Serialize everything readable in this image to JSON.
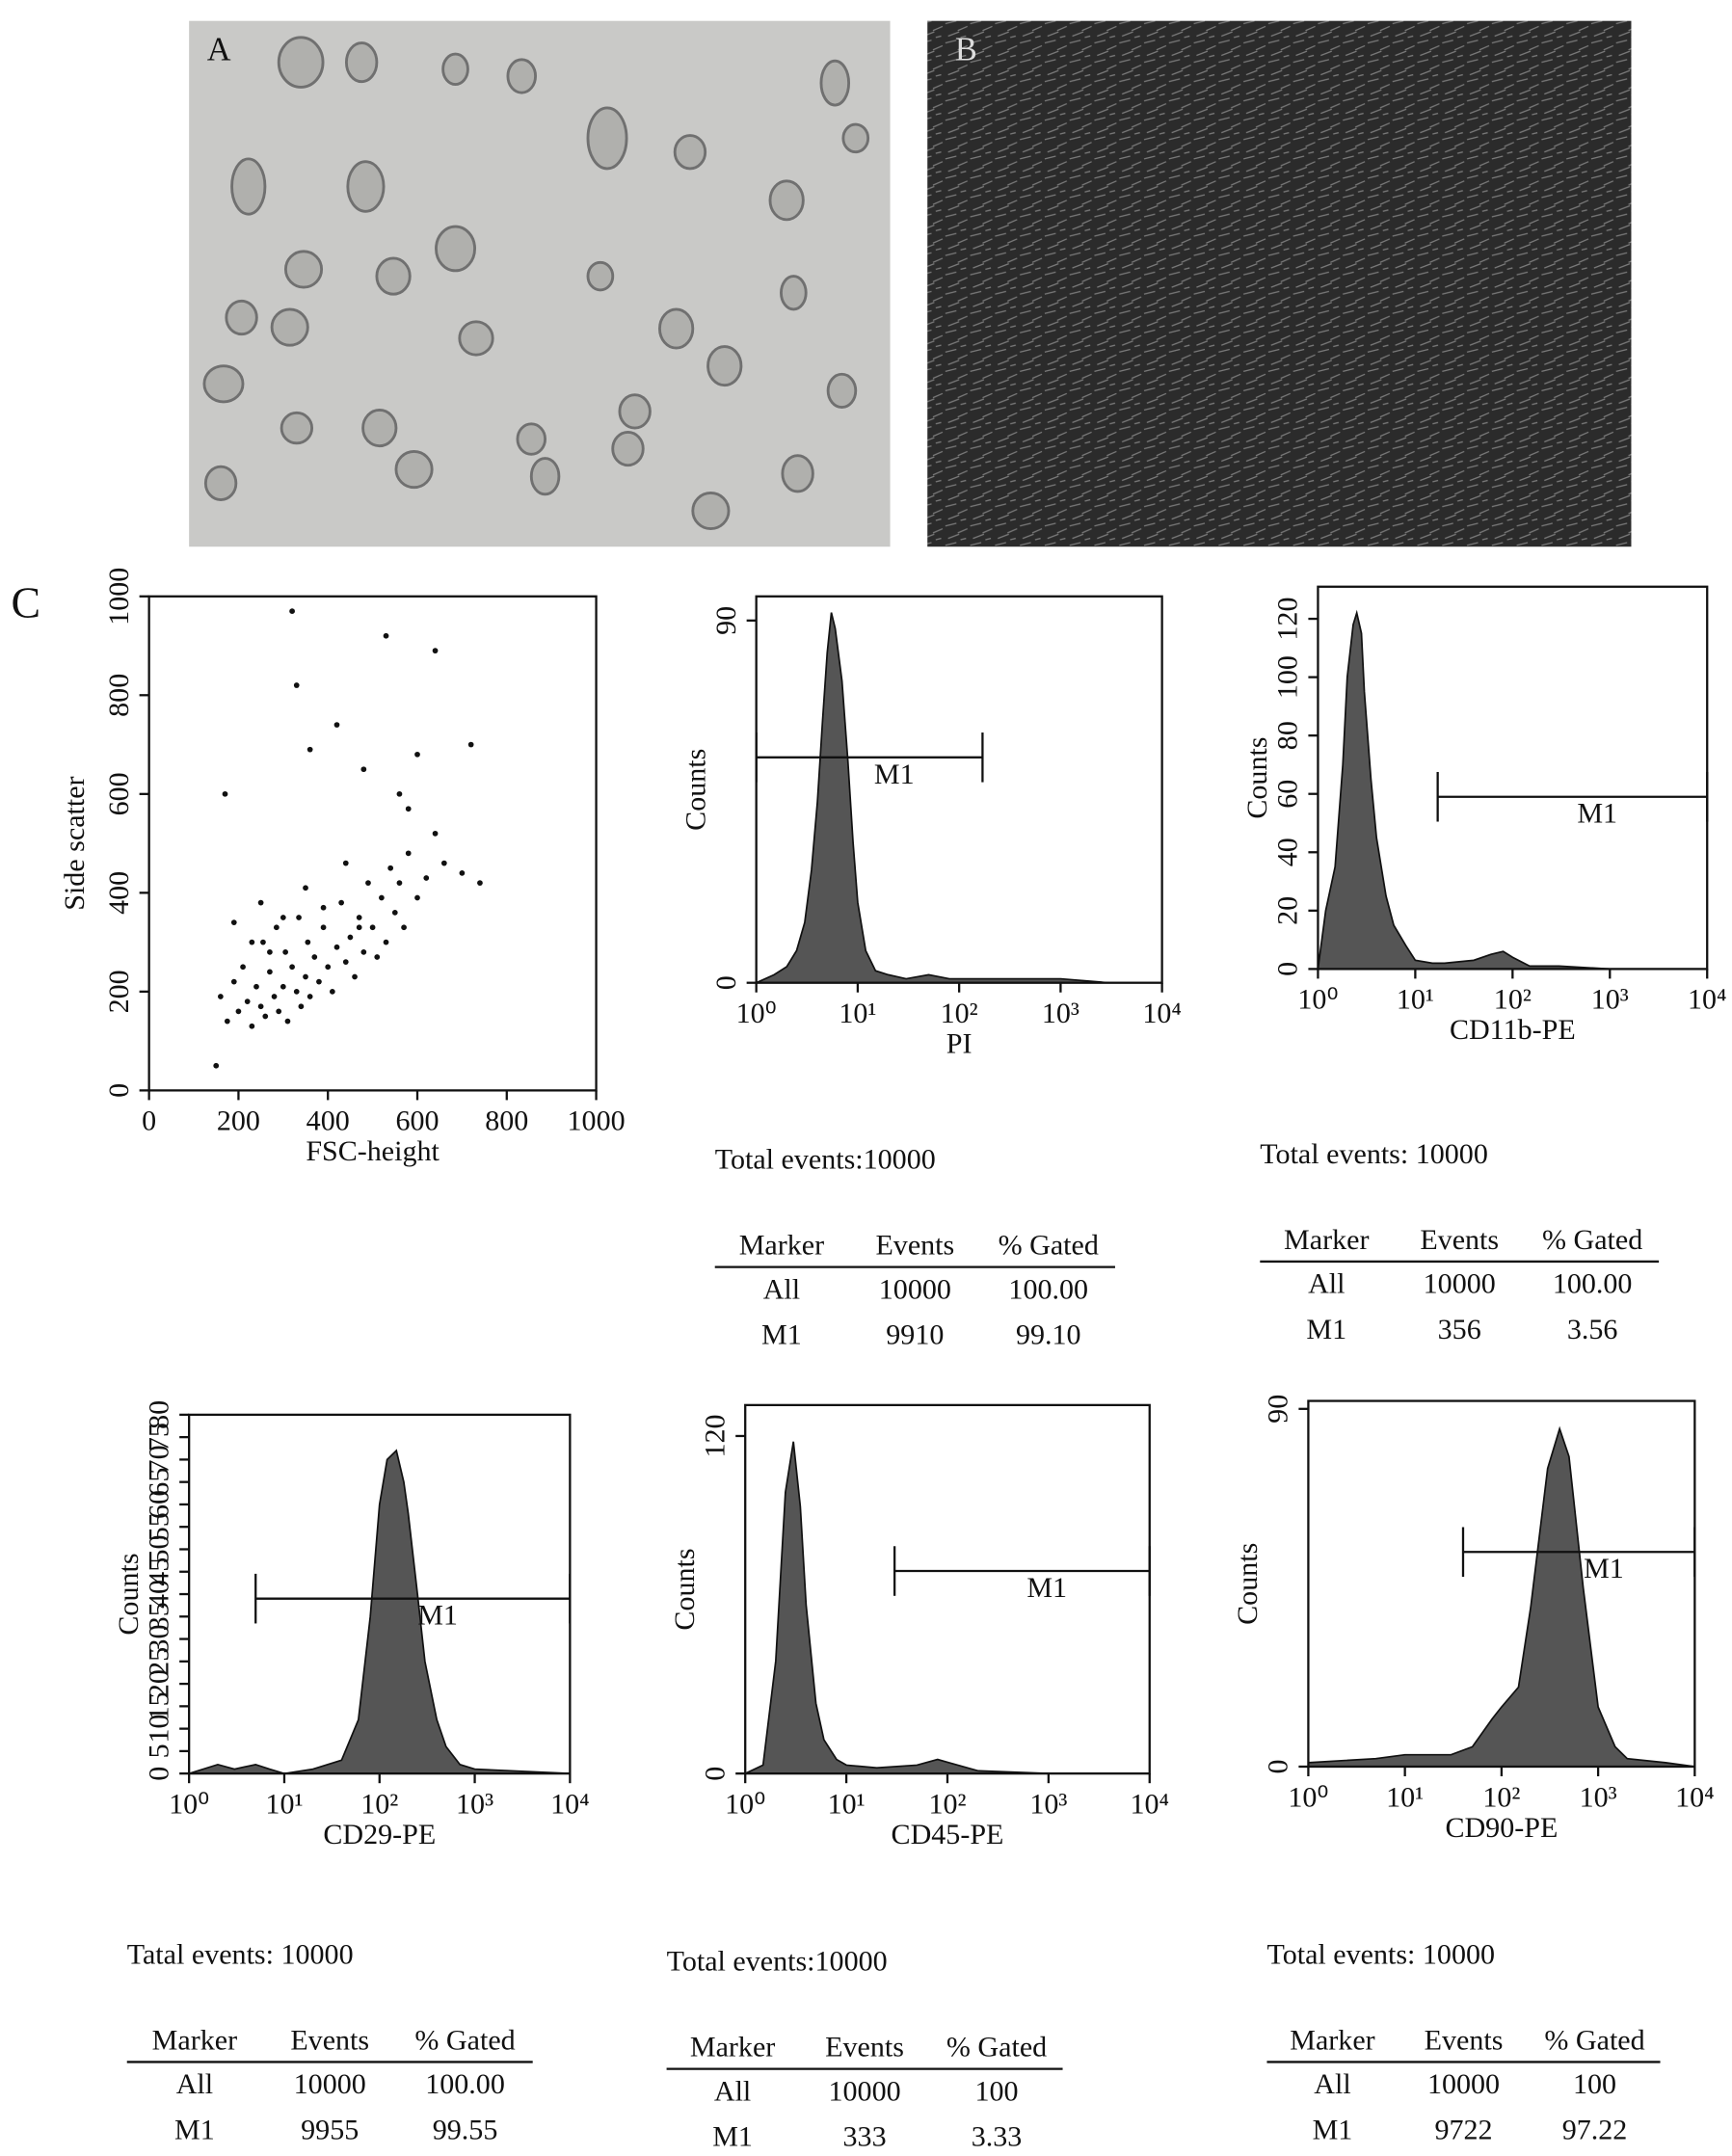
{
  "panels": {
    "a": "A",
    "b": "B",
    "c": "C"
  },
  "chart_data": [
    {
      "type": "scatter",
      "x_label": "FSC-height",
      "y_label": "Side scatter",
      "xlim": [
        0,
        1000
      ],
      "ylim": [
        0,
        1000
      ],
      "xticks": [
        0,
        200,
        400,
        600,
        800,
        1000
      ],
      "yticks": [
        0,
        200,
        400,
        600,
        800,
        1000
      ],
      "color": "#111111",
      "x": [
        150,
        160,
        175,
        190,
        200,
        210,
        220,
        230,
        240,
        250,
        255,
        260,
        270,
        280,
        285,
        290,
        300,
        305,
        310,
        320,
        330,
        335,
        340,
        350,
        355,
        360,
        370,
        380,
        390,
        400,
        410,
        420,
        430,
        440,
        450,
        460,
        470,
        480,
        490,
        500,
        510,
        520,
        530,
        540,
        550,
        560,
        570,
        580,
        600,
        620,
        640,
        660,
        700,
        720,
        740,
        320,
        330,
        360,
        420,
        480,
        530,
        560,
        580,
        600,
        640,
        170,
        190,
        230,
        250,
        270,
        300,
        350,
        390,
        440,
        470
      ],
      "values": [
        50,
        190,
        140,
        220,
        160,
        250,
        180,
        130,
        210,
        170,
        300,
        150,
        240,
        190,
        330,
        160,
        210,
        280,
        140,
        250,
        200,
        350,
        170,
        230,
        300,
        190,
        270,
        220,
        330,
        250,
        200,
        290,
        380,
        260,
        310,
        230,
        350,
        280,
        420,
        330,
        270,
        390,
        300,
        450,
        360,
        420,
        330,
        480,
        390,
        430,
        520,
        460,
        440,
        700,
        420,
        970,
        820,
        690,
        740,
        650,
        920,
        600,
        570,
        680,
        890,
        600,
        340,
        300,
        380,
        280,
        350,
        410,
        370,
        460,
        330
      ]
    },
    {
      "type": "histogram",
      "x_label": "PI",
      "y_label": "Counts",
      "log_x": true,
      "xlim": [
        1,
        10000
      ],
      "ylim": [
        0,
        96
      ],
      "xticks": [
        {
          "value": 1,
          "label": "10⁰"
        },
        {
          "value": 10,
          "label": "10¹"
        },
        {
          "value": 100,
          "label": "10²"
        },
        {
          "value": 1000,
          "label": "10³"
        },
        {
          "value": 10000,
          "label": "10⁴"
        }
      ],
      "yticks": [
        0,
        90
      ],
      "color": "#555555",
      "x": [
        1,
        1.5,
        2,
        2.5,
        3,
        3.5,
        4,
        4.5,
        5,
        5.5,
        6,
        7,
        8,
        9,
        10,
        12,
        15,
        20,
        30,
        50,
        80,
        150,
        300,
        1000,
        3000,
        10000
      ],
      "values": [
        0,
        2,
        4,
        8,
        15,
        28,
        45,
        65,
        82,
        92,
        88,
        75,
        55,
        35,
        20,
        8,
        3,
        2,
        1,
        2,
        1,
        1,
        1,
        1,
        0,
        0
      ],
      "gate": {
        "label": "M1",
        "range": [
          1,
          170
        ],
        "level": 56
      },
      "stats": {
        "total": "Total events:10000",
        "columns": [
          "Marker",
          "Events",
          "% Gated"
        ],
        "rows": [
          [
            "All",
            "10000",
            "100.00"
          ],
          [
            "M1",
            "9910",
            "99.10"
          ]
        ]
      }
    },
    {
      "type": "histogram",
      "x_label": "CD11b-PE",
      "y_label": "Counts",
      "log_x": true,
      "xlim": [
        1,
        10000
      ],
      "ylim": [
        0,
        131
      ],
      "xticks": [
        {
          "value": 1,
          "label": "10⁰"
        },
        {
          "value": 10,
          "label": "10¹"
        },
        {
          "value": 100,
          "label": "10²"
        },
        {
          "value": 1000,
          "label": "10³"
        },
        {
          "value": 10000,
          "label": "10⁴"
        }
      ],
      "yticks": [
        0,
        20,
        40,
        60,
        80,
        100,
        120
      ],
      "color": "#555555",
      "x": [
        1,
        1.2,
        1.5,
        1.8,
        2,
        2.3,
        2.5,
        2.8,
        3,
        3.5,
        4,
        5,
        6,
        8,
        10,
        15,
        20,
        40,
        60,
        80,
        100,
        150,
        300,
        1000,
        10000
      ],
      "values": [
        0,
        20,
        35,
        70,
        100,
        118,
        122,
        115,
        95,
        65,
        45,
        25,
        15,
        8,
        3,
        2,
        2,
        3,
        5,
        6,
        4,
        1,
        1,
        0,
        0
      ],
      "gate": {
        "label": "M1",
        "range": [
          17,
          10000
        ],
        "level": 59
      },
      "stats": {
        "total": "Total events: 10000",
        "columns": [
          "Marker",
          "Events",
          "% Gated"
        ],
        "rows": [
          [
            "All",
            "10000",
            "100.00"
          ],
          [
            "M1",
            "356",
            "3.56"
          ]
        ]
      }
    },
    {
      "type": "histogram",
      "x_label": "CD29-PE",
      "y_label": "Counts",
      "log_x": true,
      "xlim": [
        1,
        10000
      ],
      "ylim": [
        0,
        80
      ],
      "xticks": [
        {
          "value": 1,
          "label": "10⁰"
        },
        {
          "value": 10,
          "label": "10¹"
        },
        {
          "value": 100,
          "label": "10²"
        },
        {
          "value": 1000,
          "label": "10³"
        },
        {
          "value": 10000,
          "label": "10⁴"
        }
      ],
      "yticks": [
        0,
        5,
        10,
        15,
        20,
        25,
        30,
        35,
        40,
        45,
        50,
        55,
        60,
        65,
        70,
        75,
        80
      ],
      "color": "#555555",
      "x": [
        1,
        2,
        3,
        5,
        7,
        10,
        20,
        40,
        60,
        80,
        100,
        120,
        150,
        180,
        200,
        250,
        300,
        400,
        500,
        700,
        1000,
        10000
      ],
      "values": [
        0,
        2,
        1,
        2,
        1,
        0,
        1,
        3,
        12,
        35,
        60,
        70,
        72,
        65,
        58,
        40,
        25,
        12,
        6,
        2,
        1,
        0
      ],
      "gate": {
        "label": "M1",
        "range": [
          5,
          10000
        ],
        "level": 39
      },
      "stats": {
        "total": "Tatal events: 10000",
        "columns": [
          "Marker",
          "Events",
          "% Gated"
        ],
        "rows": [
          [
            "All",
            "10000",
            "100.00"
          ],
          [
            "M1",
            "9955",
            "99.55"
          ]
        ]
      }
    },
    {
      "type": "histogram",
      "x_label": "CD45-PE",
      "y_label": "Counts",
      "log_x": true,
      "xlim": [
        1,
        10000
      ],
      "ylim": [
        0,
        131
      ],
      "xticks": [
        {
          "value": 1,
          "label": "10⁰"
        },
        {
          "value": 10,
          "label": "10¹"
        },
        {
          "value": 100,
          "label": "10²"
        },
        {
          "value": 1000,
          "label": "10³"
        },
        {
          "value": 10000,
          "label": "10⁴"
        }
      ],
      "yticks": [
        0,
        120
      ],
      "color": "#555555",
      "x": [
        1,
        1.5,
        2,
        2.5,
        3,
        3.5,
        4,
        5,
        6,
        8,
        10,
        20,
        50,
        80,
        100,
        200,
        1000,
        10000
      ],
      "values": [
        0,
        3,
        40,
        100,
        118,
        95,
        60,
        25,
        12,
        5,
        3,
        2,
        3,
        5,
        4,
        1,
        0,
        0
      ],
      "gate": {
        "label": "M1",
        "range": [
          30,
          10000
        ],
        "level": 72
      },
      "stats": {
        "total": "Total events:10000",
        "columns": [
          "Marker",
          "Events",
          "% Gated"
        ],
        "rows": [
          [
            "All",
            "10000",
            "100"
          ],
          [
            "M1",
            "333",
            "3.33"
          ]
        ]
      }
    },
    {
      "type": "histogram",
      "x_label": "CD90-PE",
      "y_label": "Counts",
      "log_x": true,
      "xlim": [
        1,
        10000
      ],
      "ylim": [
        0,
        92
      ],
      "xticks": [
        {
          "value": 1,
          "label": "10⁰"
        },
        {
          "value": 10,
          "label": "10¹"
        },
        {
          "value": 100,
          "label": "10²"
        },
        {
          "value": 1000,
          "label": "10³"
        },
        {
          "value": 10000,
          "label": "10⁴"
        }
      ],
      "yticks": [
        0,
        90
      ],
      "color": "#555555",
      "x": [
        1,
        5,
        10,
        30,
        50,
        80,
        100,
        150,
        200,
        300,
        400,
        500,
        700,
        1000,
        1500,
        2000,
        5000,
        10000
      ],
      "values": [
        1,
        2,
        3,
        3,
        5,
        12,
        15,
        20,
        40,
        75,
        85,
        78,
        45,
        15,
        5,
        2,
        1,
        0
      ],
      "gate": {
        "label": "M1",
        "range": [
          40,
          10000
        ],
        "level": 54
      },
      "stats": {
        "total": "Total events: 10000",
        "columns": [
          "Marker",
          "Events",
          "% Gated"
        ],
        "rows": [
          [
            "All",
            "10000",
            "100"
          ],
          [
            "M1",
            "9722",
            "97.22"
          ]
        ]
      }
    }
  ]
}
